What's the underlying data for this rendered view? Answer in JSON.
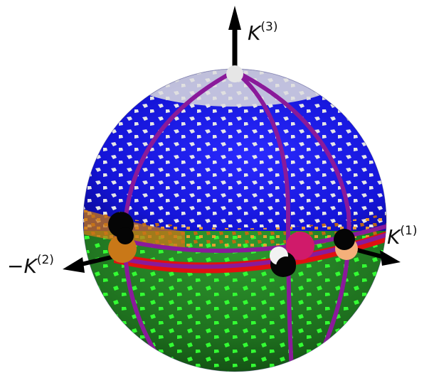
{
  "labels": {
    "k3": {
      "base": "K",
      "sup": "(3)"
    },
    "k1": {
      "base": "K",
      "sup": "(1)"
    },
    "k2": {
      "base": "−K",
      "sup": "(2)"
    }
  },
  "colors": {
    "blue_cap": "#1a1ae6",
    "white_speckle": "#dcdcdc",
    "green_band": "#1e7a1e",
    "green_speckle": "#33ff33",
    "orange_band": "#d98a1a",
    "red_band": "#e01010",
    "purple_lines": "#8a1a9a",
    "arrow": "#000000"
  }
}
